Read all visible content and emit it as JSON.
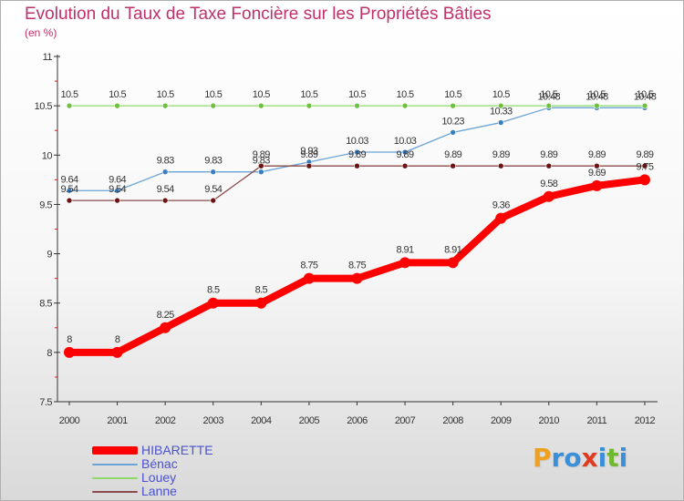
{
  "chart_data": {
    "type": "line",
    "title": "Evolution du Taux de Taxe Foncière sur les Propriétés Bâties",
    "subtitle": "(en %)",
    "x": [
      "2000",
      "2001",
      "2002",
      "2003",
      "2004",
      "2005",
      "2006",
      "2007",
      "2008",
      "2009",
      "2010",
      "2011",
      "2012"
    ],
    "ylim": [
      7.5,
      11
    ],
    "yticks": [
      "7.5",
      "8",
      "8.5",
      "9",
      "9.5",
      "10",
      "10.5",
      "11"
    ],
    "grid": false,
    "legend_position": "bottom-left",
    "series": [
      {
        "name": "Bénac",
        "color": "#6aa3d5",
        "dot": "#3b7fc1",
        "values": [
          9.64,
          9.64,
          9.83,
          9.83,
          9.83,
          9.93,
          10.03,
          10.03,
          10.23,
          10.33,
          10.48,
          10.48,
          10.48
        ],
        "labels": [
          "9.64",
          "9.64",
          "9.83",
          "9.83",
          "9.83",
          "9.93",
          "10.03",
          "10.03",
          "10.23",
          "10.33",
          "10.48",
          "10.48",
          "10.48"
        ]
      },
      {
        "name": "Louey",
        "color": "#8fd96a",
        "dot": "#6fc040",
        "values": [
          10.5,
          10.5,
          10.5,
          10.5,
          10.5,
          10.5,
          10.5,
          10.5,
          10.5,
          10.5,
          10.5,
          10.5,
          10.5
        ],
        "labels": [
          "10.5",
          "10.5",
          "10.5",
          "10.5",
          "10.5",
          "10.5",
          "10.5",
          "10.5",
          "10.5",
          "10.5",
          "10.5",
          "10.5",
          "10.5"
        ]
      },
      {
        "name": "Lanne",
        "color": "#8a4a4a",
        "dot": "#6a1414",
        "values": [
          9.54,
          9.54,
          9.54,
          9.54,
          9.89,
          9.89,
          9.89,
          9.89,
          9.89,
          9.89,
          9.89,
          9.89,
          9.89
        ],
        "labels": [
          "9.54",
          "9.54",
          "9.54",
          "9.54",
          "9.89",
          "9.89",
          "9.89",
          "9.89",
          "9.89",
          "9.89",
          "9.89",
          "9.89",
          "9.89"
        ]
      },
      {
        "name": "HIBARETTE",
        "color": "#ff0000",
        "dot": "#ff0000",
        "values": [
          8,
          8,
          8.25,
          8.5,
          8.5,
          8.75,
          8.75,
          8.91,
          8.91,
          9.36,
          9.58,
          9.69,
          9.75
        ],
        "labels": [
          "8",
          "8",
          "8.25",
          "8.5",
          "8.5",
          "8.75",
          "8.75",
          "8.91",
          "8.91",
          "9.36",
          "9.58",
          "9.69",
          "9.75"
        ]
      }
    ]
  },
  "legend": [
    {
      "label": "HIBARETTE",
      "color": "#ff0000"
    },
    {
      "label": "Bénac",
      "color": "#6aa3d5"
    },
    {
      "label": "Louey",
      "color": "#8fd96a"
    },
    {
      "label": "Lanne",
      "color": "#8a4a4a"
    }
  ],
  "logo": {
    "letters": [
      "P",
      "r",
      "o",
      "x",
      "i",
      "t",
      "i"
    ],
    "colors": [
      "#f0a020",
      "#3a8fd8",
      "#3a8fd8",
      "#e03a20",
      "#3a8fd8",
      "#70b830",
      "#3a8fd8"
    ]
  }
}
